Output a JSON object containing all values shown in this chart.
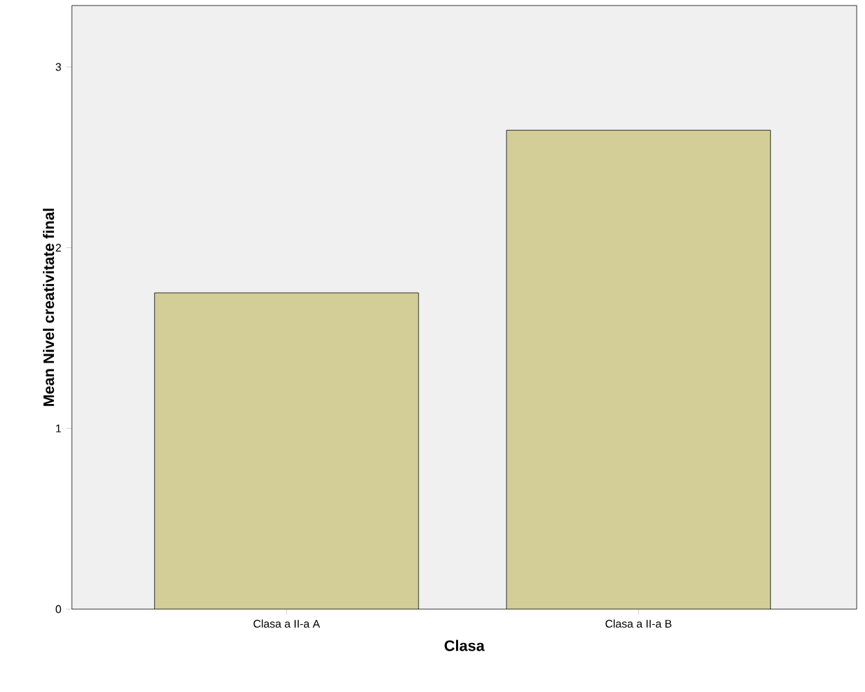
{
  "chart_data": {
    "type": "bar",
    "categories": [
      "Clasa a II-a A",
      "Clasa a II-a B"
    ],
    "values": [
      1.75,
      2.65
    ],
    "color": "#d3ce97",
    "xlabel": "Clasa",
    "ylabel": "Mean Nivel creativitate final",
    "ylim": [
      0,
      3.34
    ],
    "yticks": [
      0,
      1,
      2,
      3
    ],
    "grid": false
  }
}
